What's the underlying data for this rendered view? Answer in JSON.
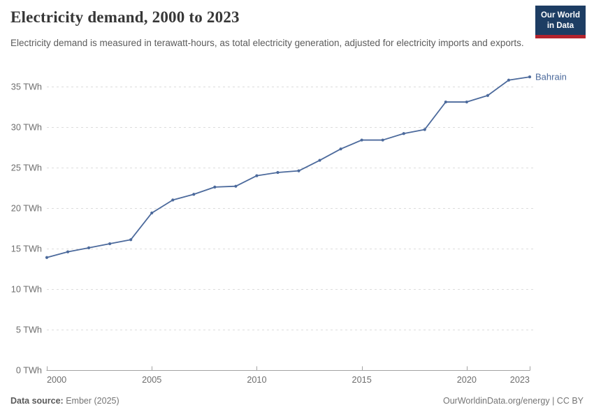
{
  "header": {
    "title": "Electricity demand, 2000 to 2023",
    "subtitle": "Electricity demand is measured in terawatt-hours, as total electricity generation, adjusted for electricity imports and exports.",
    "logo": {
      "line1": "Our World",
      "line2": "in Data",
      "bg_color": "#1d3d63",
      "accent_color": "#b4232d"
    }
  },
  "chart_data": {
    "type": "line",
    "title": "Electricity demand, 2000 to 2023",
    "xlabel": "",
    "ylabel": "",
    "xlim": [
      2000,
      2023
    ],
    "ylim": [
      0,
      35
    ],
    "x_ticks": [
      2000,
      2005,
      2010,
      2015,
      2020,
      2023
    ],
    "y_ticks": [
      0,
      5,
      10,
      15,
      20,
      25,
      30,
      35
    ],
    "y_tick_format": "{v} TWh",
    "grid": "horizontal-dashed",
    "legend": "end-of-line-label",
    "grid_color": "#dcdcdc",
    "axis_color": "#a3a3a3",
    "tick_color": "#6e6e6e",
    "series": [
      {
        "name": "Bahrain",
        "color": "#4c6a9c",
        "x": [
          2000,
          2001,
          2002,
          2003,
          2004,
          2005,
          2006,
          2007,
          2008,
          2009,
          2010,
          2011,
          2012,
          2013,
          2014,
          2015,
          2016,
          2017,
          2018,
          2019,
          2020,
          2021,
          2022,
          2023
        ],
        "values": [
          13.9,
          14.6,
          15.1,
          15.6,
          16.1,
          19.4,
          21.0,
          21.7,
          22.6,
          22.7,
          24.0,
          24.4,
          24.6,
          25.9,
          27.3,
          28.4,
          28.4,
          29.2,
          29.7,
          33.1,
          33.1,
          33.9,
          35.8,
          36.2
        ]
      }
    ]
  },
  "footer": {
    "datasource_label": "Data source:",
    "datasource_value": "Ember (2025)",
    "credit": "OurWorldinData.org/energy | CC BY"
  }
}
